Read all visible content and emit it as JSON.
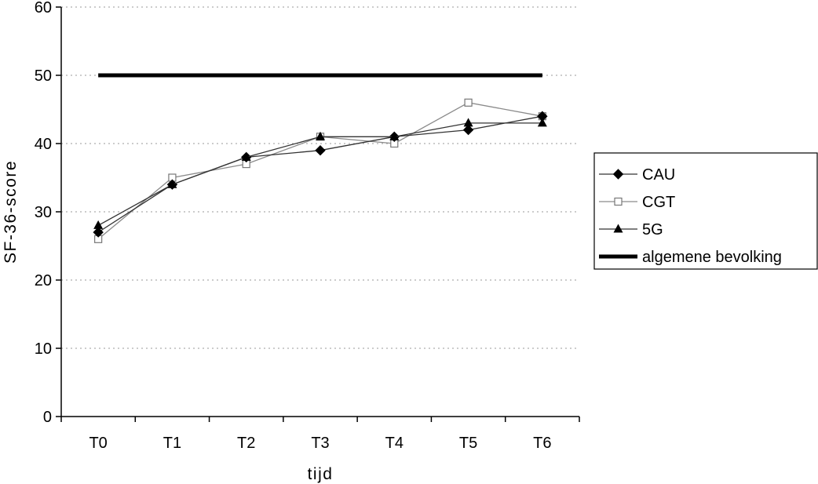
{
  "chart_data": {
    "type": "line",
    "title": "",
    "xlabel": "tijd",
    "ylabel": "SF-36-score",
    "categories": [
      "T0",
      "T1",
      "T2",
      "T3",
      "T4",
      "T5",
      "T6"
    ],
    "ylim": [
      0,
      60
    ],
    "yticks": [
      0,
      10,
      20,
      30,
      40,
      50,
      60
    ],
    "grid": "horizontal dotted",
    "legend_position": "right",
    "series": [
      {
        "name": "CAU",
        "marker": "diamond-filled",
        "color": "#000000",
        "values": [
          27,
          34,
          38,
          39,
          41,
          42,
          44
        ]
      },
      {
        "name": "CGT",
        "marker": "square-open",
        "color": "#999999",
        "values": [
          26,
          35,
          37,
          41,
          40,
          46,
          44
        ]
      },
      {
        "name": "5G",
        "marker": "triangle-filled",
        "color": "#000000",
        "values": [
          28,
          34,
          38,
          41,
          41,
          43,
          43
        ]
      },
      {
        "name": "algemene bevolking",
        "marker": "none",
        "color": "#000000",
        "thick": true,
        "values": [
          50,
          50,
          50,
          50,
          50,
          50,
          50
        ]
      }
    ]
  }
}
